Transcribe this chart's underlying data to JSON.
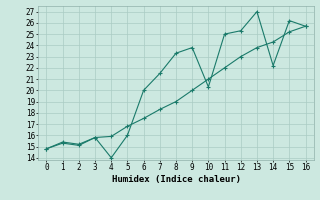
{
  "xlabel": "Humidex (Indice chaleur)",
  "background_color": "#cce8e0",
  "grid_color": "#aaccc4",
  "line_color": "#1a7a6a",
  "xlim": [
    -0.5,
    16.5
  ],
  "ylim": [
    13.8,
    27.5
  ],
  "xticks": [
    0,
    1,
    2,
    3,
    4,
    5,
    6,
    7,
    8,
    9,
    10,
    11,
    12,
    13,
    14,
    15,
    16
  ],
  "yticks": [
    14,
    15,
    16,
    17,
    18,
    19,
    20,
    21,
    22,
    23,
    24,
    25,
    26,
    27
  ],
  "line1_x": [
    0,
    1,
    2,
    3,
    4,
    5,
    6,
    7,
    8,
    9,
    10,
    11,
    12,
    13,
    14,
    15,
    16
  ],
  "line1_y": [
    14.8,
    15.3,
    15.1,
    15.8,
    14.0,
    16.0,
    20.0,
    21.5,
    23.3,
    23.8,
    20.3,
    25.0,
    25.3,
    27.0,
    22.2,
    26.2,
    25.7
  ],
  "line2_x": [
    0,
    1,
    2,
    3,
    4,
    5,
    6,
    7,
    8,
    9,
    10,
    11,
    12,
    13,
    14,
    15,
    16
  ],
  "line2_y": [
    14.8,
    15.4,
    15.2,
    15.8,
    15.9,
    16.8,
    17.5,
    18.3,
    19.0,
    20.0,
    21.0,
    22.0,
    23.0,
    23.8,
    24.3,
    25.2,
    25.7
  ]
}
